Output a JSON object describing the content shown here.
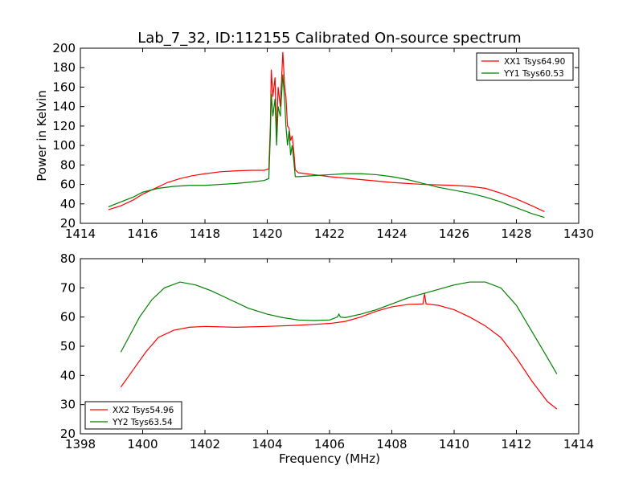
{
  "chart_data": [
    {
      "type": "line",
      "title": "Lab_7_32, ID:112155 Calibrated On-source spectrum",
      "xlabel": "",
      "ylabel": "Power in Kelvin",
      "xlim": [
        1414,
        1430
      ],
      "ylim": [
        20,
        200
      ],
      "xticks": [
        "1414",
        "1416",
        "1418",
        "1420",
        "1422",
        "1424",
        "1426",
        "1428",
        "1430"
      ],
      "yticks": [
        "20",
        "40",
        "60",
        "80",
        "100",
        "120",
        "140",
        "160",
        "180",
        "200"
      ],
      "grid": false,
      "legend_position": "top-right",
      "series": [
        {
          "name": "XX1 Tsys64.90",
          "color": "#ff0000",
          "points": [
            [
              1414.9,
              34
            ],
            [
              1415.3,
              38
            ],
            [
              1415.7,
              44
            ],
            [
              1416.0,
              50
            ],
            [
              1416.4,
              56
            ],
            [
              1416.8,
              62
            ],
            [
              1417.2,
              66
            ],
            [
              1417.6,
              69
            ],
            [
              1418.0,
              71
            ],
            [
              1418.5,
              73
            ],
            [
              1419.0,
              74
            ],
            [
              1419.5,
              74.5
            ],
            [
              1419.9,
              74.5
            ],
            [
              1420.05,
              76
            ],
            [
              1420.1,
              120
            ],
            [
              1420.13,
              178
            ],
            [
              1420.18,
              150
            ],
            [
              1420.25,
              170
            ],
            [
              1420.3,
              110
            ],
            [
              1420.35,
              160
            ],
            [
              1420.42,
              140
            ],
            [
              1420.5,
              196
            ],
            [
              1420.56,
              160
            ],
            [
              1420.6,
              150
            ],
            [
              1420.65,
              120
            ],
            [
              1420.7,
              118
            ],
            [
              1420.75,
              105
            ],
            [
              1420.8,
              110
            ],
            [
              1420.85,
              95
            ],
            [
              1420.9,
              75
            ],
            [
              1421.0,
              72
            ],
            [
              1421.5,
              70
            ],
            [
              1422.0,
              68
            ],
            [
              1423.0,
              65
            ],
            [
              1424.0,
              62
            ],
            [
              1425.0,
              60
            ],
            [
              1426.0,
              59
            ],
            [
              1426.5,
              58
            ],
            [
              1427.0,
              56
            ],
            [
              1427.5,
              51
            ],
            [
              1428.0,
              45
            ],
            [
              1428.5,
              38
            ],
            [
              1428.9,
              32
            ]
          ]
        },
        {
          "name": "YY1 Tsys60.53",
          "color": "#008000",
          "points": [
            [
              1414.9,
              37
            ],
            [
              1415.3,
              42
            ],
            [
              1415.7,
              47
            ],
            [
              1416.0,
              52
            ],
            [
              1416.5,
              56
            ],
            [
              1417.0,
              58
            ],
            [
              1417.5,
              59
            ],
            [
              1418.0,
              59
            ],
            [
              1418.5,
              60
            ],
            [
              1419.0,
              61
            ],
            [
              1419.5,
              62.5
            ],
            [
              1419.9,
              64
            ],
            [
              1420.05,
              66
            ],
            [
              1420.1,
              110
            ],
            [
              1420.13,
              153
            ],
            [
              1420.18,
              130
            ],
            [
              1420.25,
              148
            ],
            [
              1420.3,
              100
            ],
            [
              1420.35,
              140
            ],
            [
              1420.42,
              130
            ],
            [
              1420.5,
              173
            ],
            [
              1420.56,
              145
            ],
            [
              1420.6,
              120
            ],
            [
              1420.65,
              100
            ],
            [
              1420.7,
              115
            ],
            [
              1420.75,
              90
            ],
            [
              1420.8,
              100
            ],
            [
              1420.85,
              85
            ],
            [
              1420.9,
              68
            ],
            [
              1421.0,
              68
            ],
            [
              1421.5,
              69
            ],
            [
              1422.0,
              70
            ],
            [
              1422.5,
              71
            ],
            [
              1423.0,
              71
            ],
            [
              1423.5,
              70
            ],
            [
              1424.0,
              68
            ],
            [
              1424.5,
              65
            ],
            [
              1425.0,
              61
            ],
            [
              1425.5,
              57
            ],
            [
              1426.0,
              54
            ],
            [
              1426.5,
              51
            ],
            [
              1427.0,
              47
            ],
            [
              1427.5,
              42
            ],
            [
              1428.0,
              36
            ],
            [
              1428.5,
              30
            ],
            [
              1428.9,
              26
            ]
          ]
        }
      ]
    },
    {
      "type": "line",
      "title": "",
      "xlabel": "Frequency (MHz)",
      "ylabel": "",
      "xlim": [
        1398,
        1414
      ],
      "ylim": [
        20,
        80
      ],
      "xticks": [
        "1398",
        "1400",
        "1402",
        "1404",
        "1406",
        "1408",
        "1410",
        "1412",
        "1414"
      ],
      "yticks": [
        "20",
        "30",
        "40",
        "50",
        "60",
        "70",
        "80"
      ],
      "grid": false,
      "legend_position": "bottom-left",
      "series": [
        {
          "name": "XX2 Tsys54.96",
          "color": "#ff0000",
          "points": [
            [
              1399.3,
              36
            ],
            [
              1399.7,
              42
            ],
            [
              1400.1,
              48
            ],
            [
              1400.5,
              53
            ],
            [
              1401.0,
              55.5
            ],
            [
              1401.5,
              56.5
            ],
            [
              1402.0,
              56.8
            ],
            [
              1403.0,
              56.5
            ],
            [
              1404.0,
              56.8
            ],
            [
              1405.0,
              57.2
            ],
            [
              1406.0,
              57.8
            ],
            [
              1406.5,
              58.5
            ],
            [
              1407.0,
              60
            ],
            [
              1407.5,
              62
            ],
            [
              1408.0,
              63.5
            ],
            [
              1408.5,
              64.3
            ],
            [
              1409.0,
              64.5
            ],
            [
              1409.05,
              68
            ],
            [
              1409.1,
              64.5
            ],
            [
              1409.5,
              64
            ],
            [
              1410.0,
              62.5
            ],
            [
              1410.5,
              60
            ],
            [
              1411.0,
              57
            ],
            [
              1411.5,
              53
            ],
            [
              1412.0,
              46
            ],
            [
              1412.5,
              38
            ],
            [
              1413.0,
              31
            ],
            [
              1413.3,
              28.5
            ]
          ]
        },
        {
          "name": "YY2 Tsys63.54",
          "color": "#008000",
          "points": [
            [
              1399.3,
              48
            ],
            [
              1399.6,
              54
            ],
            [
              1399.9,
              60
            ],
            [
              1400.3,
              66
            ],
            [
              1400.7,
              70
            ],
            [
              1401.2,
              72
            ],
            [
              1401.7,
              71
            ],
            [
              1402.2,
              69
            ],
            [
              1402.8,
              66
            ],
            [
              1403.4,
              63
            ],
            [
              1404.0,
              61
            ],
            [
              1404.5,
              59.8
            ],
            [
              1405.0,
              59
            ],
            [
              1405.5,
              58.8
            ],
            [
              1406.0,
              59
            ],
            [
              1406.25,
              60
            ],
            [
              1406.3,
              61
            ],
            [
              1406.35,
              60
            ],
            [
              1406.5,
              59.8
            ],
            [
              1407.0,
              61
            ],
            [
              1407.5,
              62.5
            ],
            [
              1408.0,
              64.5
            ],
            [
              1408.5,
              66.5
            ],
            [
              1409.0,
              68
            ],
            [
              1409.5,
              69.5
            ],
            [
              1410.0,
              71
            ],
            [
              1410.5,
              72
            ],
            [
              1411.0,
              72
            ],
            [
              1411.5,
              70
            ],
            [
              1412.0,
              64
            ],
            [
              1412.5,
              55
            ],
            [
              1413.0,
              46
            ],
            [
              1413.3,
              40.5
            ]
          ]
        }
      ]
    }
  ]
}
